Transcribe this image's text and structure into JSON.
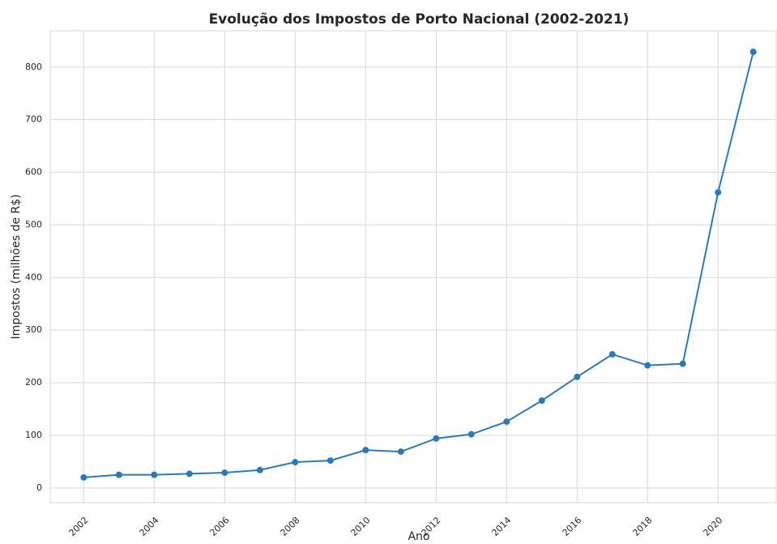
{
  "chart_data": {
    "type": "line",
    "title": "Evolução dos Impostos de Porto Nacional (2002-2021)",
    "x_label": "Ano",
    "y_label": "Impostos (milhões de R$)",
    "x": [
      2002,
      2003,
      2004,
      2005,
      2006,
      2007,
      2008,
      2009,
      2010,
      2011,
      2012,
      2013,
      2014,
      2015,
      2016,
      2017,
      2018,
      2019,
      2020,
      2021
    ],
    "series": [
      {
        "name": "Impostos",
        "color": "#2a7ab9",
        "values": [
          20,
          25,
          25,
          27,
          29,
          34,
          49,
          52,
          72,
          69,
          94,
          102,
          126,
          166,
          211,
          254,
          233,
          236,
          562,
          829
        ]
      }
    ],
    "xlim": [
      2001.05,
      2021.65
    ],
    "xticks": [
      2002,
      2004,
      2006,
      2008,
      2010,
      2012,
      2014,
      2016,
      2018,
      2020
    ],
    "ylim": [
      -28,
      869
    ],
    "yticks": [
      0,
      100,
      200,
      300,
      400,
      500,
      600,
      700,
      800
    ],
    "grid": true,
    "marker": "circle"
  }
}
